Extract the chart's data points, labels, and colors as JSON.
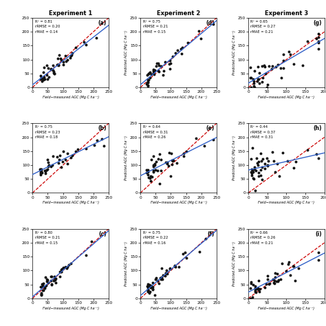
{
  "title_col": [
    "Experiment 1",
    "Experiment 2",
    "Experiment 3"
  ],
  "panels": [
    {
      "label": "(a)",
      "row": 0,
      "col": 0,
      "R2": 0.81,
      "rRMSE": 0.2,
      "rMAE": 0.14,
      "slope": 0.92,
      "intercept": 5,
      "noise": 12,
      "xlim": [
        0,
        250
      ],
      "ylim": [
        0,
        250
      ],
      "xstart": 25,
      "xend": 235,
      "npts": 45
    },
    {
      "label": "(b)",
      "row": 1,
      "col": 0,
      "R2": 0.75,
      "rRMSE": 0.23,
      "rMAE": 0.18,
      "slope": 0.55,
      "intercept": 65,
      "noise": 15,
      "xlim": [
        0,
        250
      ],
      "ylim": [
        0,
        250
      ],
      "xstart": 25,
      "xend": 235,
      "npts": 40
    },
    {
      "label": "(c)",
      "row": 2,
      "col": 0,
      "R2": 0.8,
      "rRMSE": 0.21,
      "rMAE": 0.15,
      "slope": 0.9,
      "intercept": 8,
      "noise": 12,
      "xlim": [
        0,
        250
      ],
      "ylim": [
        0,
        250
      ],
      "xstart": 25,
      "xend": 235,
      "npts": 45
    },
    {
      "label": "(d)",
      "row": 0,
      "col": 1,
      "R2": 0.75,
      "rRMSE": 0.21,
      "rMAE": 0.15,
      "slope": 0.88,
      "intercept": 10,
      "noise": 15,
      "xlim": [
        0,
        250
      ],
      "ylim": [
        0,
        250
      ],
      "xstart": 20,
      "xend": 240,
      "npts": 45
    },
    {
      "label": "(e)",
      "row": 1,
      "col": 1,
      "R2": 0.64,
      "rRMSE": 0.31,
      "rMAE": 0.26,
      "slope": 0.5,
      "intercept": 70,
      "noise": 22,
      "xlim": [
        0,
        250
      ],
      "ylim": [
        0,
        250
      ],
      "xstart": 20,
      "xend": 240,
      "npts": 45
    },
    {
      "label": "(f)",
      "row": 2,
      "col": 1,
      "R2": 0.75,
      "rRMSE": 0.22,
      "rMAE": 0.16,
      "slope": 0.88,
      "intercept": 12,
      "noise": 15,
      "xlim": [
        0,
        250
      ],
      "ylim": [
        0,
        250
      ],
      "xstart": 20,
      "xend": 240,
      "npts": 45
    },
    {
      "label": "(g)",
      "row": 0,
      "col": 2,
      "R2": 0.65,
      "rRMSE": 0.27,
      "rMAE": 0.21,
      "slope": 0.8,
      "intercept": 15,
      "noise": 20,
      "xlim": [
        0,
        200
      ],
      "ylim": [
        0,
        250
      ],
      "xstart": 5,
      "xend": 185,
      "npts": 45
    },
    {
      "label": "(h)",
      "row": 1,
      "col": 2,
      "R2": 0.44,
      "rRMSE": 0.37,
      "rMAE": 0.31,
      "slope": 0.35,
      "intercept": 80,
      "noise": 28,
      "xlim": [
        0,
        200
      ],
      "ylim": [
        0,
        250
      ],
      "xstart": 5,
      "xend": 185,
      "npts": 45
    },
    {
      "label": "(i)",
      "row": 2,
      "col": 2,
      "R2": 0.66,
      "rRMSE": 0.26,
      "rMAE": 0.21,
      "slope": 0.78,
      "intercept": 18,
      "noise": 20,
      "xlim": [
        0,
        200
      ],
      "ylim": [
        0,
        250
      ],
      "xstart": 5,
      "xend": 185,
      "npts": 45
    }
  ],
  "xlabel": "Field−measured AGC (Mg C ha⁻¹)",
  "ylabel": "Predicted AGC (Mg C ha⁻¹)",
  "line_color_fit": "#3060c8",
  "line_color_11": "#cc0000",
  "dot_color": "#111111",
  "dot_size": 8,
  "background_color": "#ffffff"
}
